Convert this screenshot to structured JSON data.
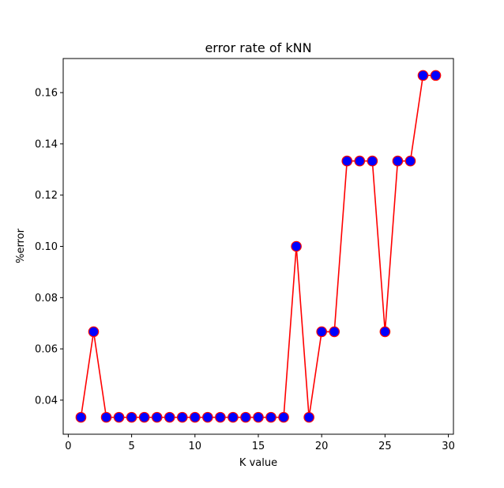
{
  "chart_data": {
    "type": "line",
    "title": "error rate of kNN",
    "xlabel": "K value",
    "ylabel": "%error",
    "xlim": [
      -0.4,
      30.4
    ],
    "ylim": [
      0.0267,
      0.1733
    ],
    "x_ticks": [
      0,
      5,
      10,
      15,
      20,
      25,
      30
    ],
    "x_tick_labels": [
      "0",
      "5",
      "10",
      "15",
      "20",
      "25",
      "30"
    ],
    "y_ticks": [
      0.04,
      0.06,
      0.08,
      0.1,
      0.12,
      0.14,
      0.16
    ],
    "y_tick_labels": [
      "0.04",
      "0.06",
      "0.08",
      "0.10",
      "0.12",
      "0.14",
      "0.16"
    ],
    "grid": false,
    "series": [
      {
        "line_color": "#ff0000",
        "marker_face_color": "#0000ff",
        "marker_edge_color": "#ff0000",
        "x": [
          1,
          2,
          3,
          4,
          5,
          6,
          7,
          8,
          9,
          10,
          11,
          12,
          13,
          14,
          15,
          16,
          17,
          18,
          19,
          20,
          21,
          22,
          23,
          24,
          25,
          26,
          27,
          28,
          29
        ],
        "y": [
          0.0333,
          0.0667,
          0.0333,
          0.0333,
          0.0333,
          0.0333,
          0.0333,
          0.0333,
          0.0333,
          0.0333,
          0.0333,
          0.0333,
          0.0333,
          0.0333,
          0.0333,
          0.0333,
          0.0333,
          0.1,
          0.0333,
          0.0667,
          0.0667,
          0.1333,
          0.1333,
          0.1333,
          0.0667,
          0.1333,
          0.1333,
          0.1667,
          0.1667
        ]
      }
    ]
  }
}
